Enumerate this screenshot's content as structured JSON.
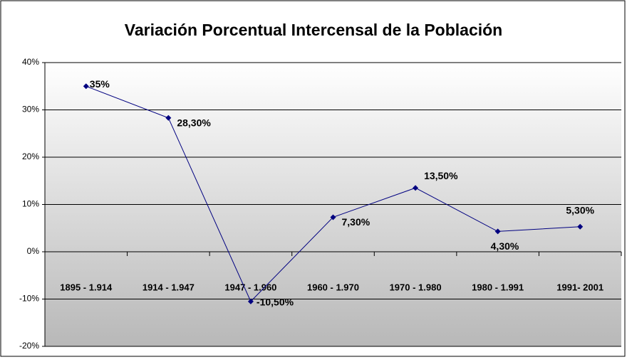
{
  "chart_data": {
    "type": "line",
    "title": "Variación Porcentual Intercensal de la Población",
    "categories": [
      "1895 - 1.914",
      "1914 - 1.947",
      "1947 - 1.960",
      "1960 - 1.970",
      "1970 - 1.980",
      "1980 - 1.991",
      "1991- 2001"
    ],
    "series": [
      {
        "name": "Variación",
        "color": "#000080",
        "values": [
          35,
          28.3,
          -10.5,
          7.3,
          13.5,
          4.3,
          5.3
        ],
        "value_labels": [
          "35%",
          "28,30%",
          "-10,50%",
          "7,30%",
          "13,50%",
          "4,30%",
          "5,30%"
        ]
      }
    ],
    "ylim": [
      -20,
      40
    ],
    "yticks": [
      {
        "value": -20,
        "label": "-20%"
      },
      {
        "value": -10,
        "label": "-10%"
      },
      {
        "value": 0,
        "label": "0%"
      },
      {
        "value": 10,
        "label": "10%"
      },
      {
        "value": 20,
        "label": "20%"
      },
      {
        "value": 30,
        "label": "30%"
      },
      {
        "value": 40,
        "label": "40%"
      }
    ],
    "grid": true
  }
}
